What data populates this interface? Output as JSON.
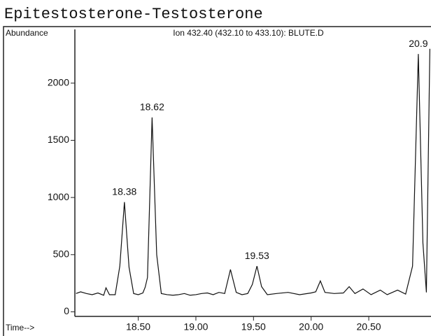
{
  "chart_data": {
    "type": "line",
    "title": "Epitestosterone-Testosterone",
    "subtitle": "Ion 432.40 (432.10 to 433.10): BLUTE.D",
    "y_label": "Abundance",
    "x_label": "Time-->",
    "color": "#111111",
    "xlim": [
      17.95,
      21.04
    ],
    "ylim": [
      -40,
      2470
    ],
    "xticks": [
      {
        "value": 18.5,
        "label": "18.50"
      },
      {
        "value": 19.0,
        "label": "19.00"
      },
      {
        "value": 19.5,
        "label": "19.50"
      },
      {
        "value": 20.0,
        "label": "20.00"
      },
      {
        "value": 20.5,
        "label": "20.50"
      }
    ],
    "yticks": [
      0,
      500,
      1000,
      1500,
      2000
    ],
    "x": [
      17.96,
      18.0,
      18.05,
      18.1,
      18.15,
      18.2,
      18.22,
      18.25,
      18.3,
      18.34,
      18.38,
      18.42,
      18.46,
      18.5,
      18.54,
      18.56,
      18.58,
      18.62,
      18.66,
      18.7,
      18.75,
      18.8,
      18.85,
      18.9,
      18.95,
      19.0,
      19.05,
      19.1,
      19.15,
      19.2,
      19.25,
      19.3,
      19.35,
      19.4,
      19.45,
      19.49,
      19.53,
      19.57,
      19.62,
      19.7,
      19.8,
      19.9,
      20.0,
      20.04,
      20.08,
      20.12,
      20.2,
      20.28,
      20.33,
      20.38,
      20.45,
      20.52,
      20.6,
      20.66,
      20.75,
      20.82,
      20.88,
      20.93,
      20.97,
      21.0,
      21.03
    ],
    "values": [
      160,
      175,
      160,
      150,
      165,
      145,
      210,
      150,
      150,
      400,
      960,
      390,
      160,
      150,
      165,
      215,
      300,
      1700,
      500,
      160,
      150,
      145,
      150,
      160,
      145,
      150,
      160,
      165,
      150,
      170,
      160,
      370,
      170,
      150,
      160,
      240,
      400,
      220,
      150,
      160,
      170,
      150,
      165,
      175,
      270,
      170,
      160,
      165,
      220,
      160,
      200,
      150,
      190,
      150,
      190,
      155,
      400,
      2255,
      600,
      170,
      2300
    ],
    "annotations": [
      {
        "x": 18.38,
        "label": "18.38"
      },
      {
        "x": 18.62,
        "label": "18.62"
      },
      {
        "x": 19.53,
        "label": "19.53"
      },
      {
        "x": 20.93,
        "label": "20.9"
      }
    ]
  }
}
